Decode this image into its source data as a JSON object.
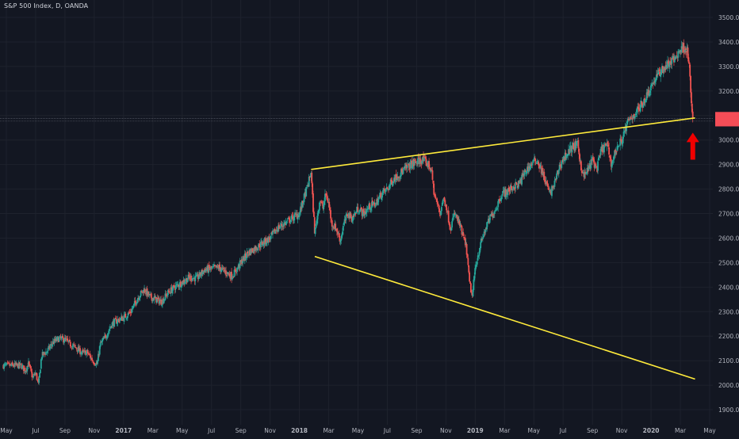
{
  "chart_data": {
    "type": "candlestick",
    "title": "S&P 500 Index, D, OANDA",
    "ylim": [
      1850,
      3560
    ],
    "y_ticks": [
      1900,
      2000,
      2100,
      2200,
      2300,
      2400,
      2500,
      2600,
      2700,
      2800,
      2900,
      3000,
      3100,
      3200,
      3300,
      3400,
      3500
    ],
    "y_tick_labels": [
      "1900.0",
      "2000.0",
      "2100.0",
      "2200.0",
      "2300.0",
      "2400.0",
      "2500.0",
      "2600.0",
      "2700.0",
      "2800.0",
      "2900.0",
      "3000.0",
      "3100.0",
      "3200.0",
      "3300.0",
      "3400.0",
      "3500.0"
    ],
    "x_tick_labels": [
      "May",
      "Jul",
      "Sep",
      "Nov",
      "2017",
      "Mar",
      "May",
      "Jul",
      "Sep",
      "Nov",
      "2018",
      "Mar",
      "May",
      "Jul",
      "Sep",
      "Nov",
      "2019",
      "Mar",
      "May",
      "Jul",
      "Sep",
      "Nov",
      "2020",
      "Mar",
      "May"
    ],
    "x_tick_months": [
      0,
      2,
      4,
      6,
      8,
      10,
      12,
      14,
      16,
      18,
      20,
      22,
      24,
      26,
      28,
      30,
      32,
      34,
      36,
      38,
      40,
      42,
      44,
      46,
      48
    ],
    "x_tick_bold": [
      4,
      10,
      16,
      22
    ],
    "month_origin": "2016-05",
    "grid": true,
    "price_anchors": [
      [
        1.0,
        2080
      ],
      [
        1.3,
        2060
      ],
      [
        1.5,
        2090
      ],
      [
        1.8,
        2030
      ],
      [
        2.0,
        2050
      ],
      [
        2.2,
        2000
      ],
      [
        2.4,
        2120
      ],
      [
        2.8,
        2140
      ],
      [
        3.2,
        2175
      ],
      [
        3.6,
        2190
      ],
      [
        4.0,
        2185
      ],
      [
        4.4,
        2165
      ],
      [
        4.8,
        2150
      ],
      [
        5.2,
        2130
      ],
      [
        5.5,
        2135
      ],
      [
        5.9,
        2100
      ],
      [
        6.1,
        2090
      ],
      [
        6.2,
        2085
      ],
      [
        6.4,
        2165
      ],
      [
        6.8,
        2200
      ],
      [
        7.2,
        2250
      ],
      [
        7.6,
        2265
      ],
      [
        8.0,
        2275
      ],
      [
        8.5,
        2300
      ],
      [
        9.0,
        2360
      ],
      [
        9.4,
        2390
      ],
      [
        9.8,
        2360
      ],
      [
        10.2,
        2350
      ],
      [
        10.6,
        2340
      ],
      [
        11.0,
        2375
      ],
      [
        11.5,
        2400
      ],
      [
        12.0,
        2420
      ],
      [
        12.5,
        2440
      ],
      [
        13.0,
        2435
      ],
      [
        13.5,
        2470
      ],
      [
        14.0,
        2475
      ],
      [
        14.5,
        2480
      ],
      [
        15.0,
        2460
      ],
      [
        15.4,
        2445
      ],
      [
        15.7,
        2470
      ],
      [
        16.0,
        2500
      ],
      [
        16.5,
        2540
      ],
      [
        17.0,
        2560
      ],
      [
        17.5,
        2580
      ],
      [
        18.0,
        2600
      ],
      [
        18.5,
        2640
      ],
      [
        19.0,
        2660
      ],
      [
        19.5,
        2680
      ],
      [
        20.0,
        2700
      ],
      [
        20.3,
        2760
      ],
      [
        20.6,
        2820
      ],
      [
        20.8,
        2870
      ],
      [
        20.9,
        2760
      ],
      [
        21.05,
        2620
      ],
      [
        21.2,
        2680
      ],
      [
        21.4,
        2760
      ],
      [
        21.6,
        2720
      ],
      [
        21.8,
        2780
      ],
      [
        22.0,
        2740
      ],
      [
        22.2,
        2660
      ],
      [
        22.5,
        2640
      ],
      [
        22.8,
        2590
      ],
      [
        23.0,
        2650
      ],
      [
        23.3,
        2700
      ],
      [
        23.6,
        2680
      ],
      [
        24.0,
        2720
      ],
      [
        24.4,
        2700
      ],
      [
        24.8,
        2730
      ],
      [
        25.2,
        2740
      ],
      [
        25.6,
        2780
      ],
      [
        26.0,
        2800
      ],
      [
        26.4,
        2840
      ],
      [
        26.8,
        2860
      ],
      [
        27.2,
        2880
      ],
      [
        27.6,
        2900
      ],
      [
        28.0,
        2910
      ],
      [
        28.4,
        2920
      ],
      [
        28.8,
        2900
      ],
      [
        29.0,
        2880
      ],
      [
        29.2,
        2780
      ],
      [
        29.4,
        2740
      ],
      [
        29.6,
        2700
      ],
      [
        29.8,
        2760
      ],
      [
        30.0,
        2740
      ],
      [
        30.3,
        2640
      ],
      [
        30.6,
        2700
      ],
      [
        30.9,
        2660
      ],
      [
        31.2,
        2600
      ],
      [
        31.4,
        2560
      ],
      [
        31.6,
        2420
      ],
      [
        31.8,
        2360
      ],
      [
        32.0,
        2480
      ],
      [
        32.3,
        2560
      ],
      [
        32.6,
        2620
      ],
      [
        33.0,
        2680
      ],
      [
        33.4,
        2720
      ],
      [
        33.8,
        2780
      ],
      [
        34.2,
        2790
      ],
      [
        34.6,
        2810
      ],
      [
        35.0,
        2820
      ],
      [
        35.4,
        2870
      ],
      [
        35.8,
        2900
      ],
      [
        36.2,
        2920
      ],
      [
        36.5,
        2880
      ],
      [
        36.8,
        2830
      ],
      [
        37.1,
        2780
      ],
      [
        37.4,
        2820
      ],
      [
        37.8,
        2900
      ],
      [
        38.2,
        2940
      ],
      [
        38.6,
        2970
      ],
      [
        39.0,
        2980
      ],
      [
        39.2,
        2900
      ],
      [
        39.4,
        2850
      ],
      [
        39.7,
        2880
      ],
      [
        40.0,
        2920
      ],
      [
        40.3,
        2880
      ],
      [
        40.6,
        2960
      ],
      [
        41.0,
        2980
      ],
      [
        41.3,
        2900
      ],
      [
        41.6,
        2960
      ],
      [
        42.0,
        3000
      ],
      [
        42.4,
        3070
      ],
      [
        42.8,
        3100
      ],
      [
        43.2,
        3130
      ],
      [
        43.6,
        3170
      ],
      [
        44.0,
        3220
      ],
      [
        44.4,
        3260
      ],
      [
        44.8,
        3290
      ],
      [
        45.2,
        3310
      ],
      [
        45.6,
        3330
      ],
      [
        46.0,
        3370
      ],
      [
        46.3,
        3380
      ],
      [
        46.5,
        3360
      ],
      [
        46.6,
        3300
      ],
      [
        46.7,
        3200
      ],
      [
        46.8,
        3110
      ],
      [
        46.85,
        3090
      ]
    ],
    "trendlines": [
      {
        "name": "upper",
        "color": "#ffeb3b",
        "points": [
          [
            20.8,
            2880
          ],
          [
            47.0,
            3090
          ]
        ]
      },
      {
        "name": "lower",
        "color": "#ffeb3b",
        "points": [
          [
            21.05,
            2525
          ],
          [
            47.0,
            2025
          ]
        ]
      }
    ],
    "horizontal_lines": [
      3088,
      3077
    ],
    "price_markers": [
      {
        "value": 3095,
        "color": "#f44d57"
      },
      {
        "value": 3075,
        "color": "#f44d57"
      }
    ],
    "arrow": {
      "x_month": 46.85,
      "y_tip": 3030,
      "y_tail": 2920,
      "color": "#f00000"
    },
    "colors": {
      "background": "#131722",
      "grid": "#1e222d",
      "up": "#26a69a",
      "down": "#ef5350",
      "axis_text": "#b2b5be",
      "trendline": "#ffeb3b"
    }
  }
}
